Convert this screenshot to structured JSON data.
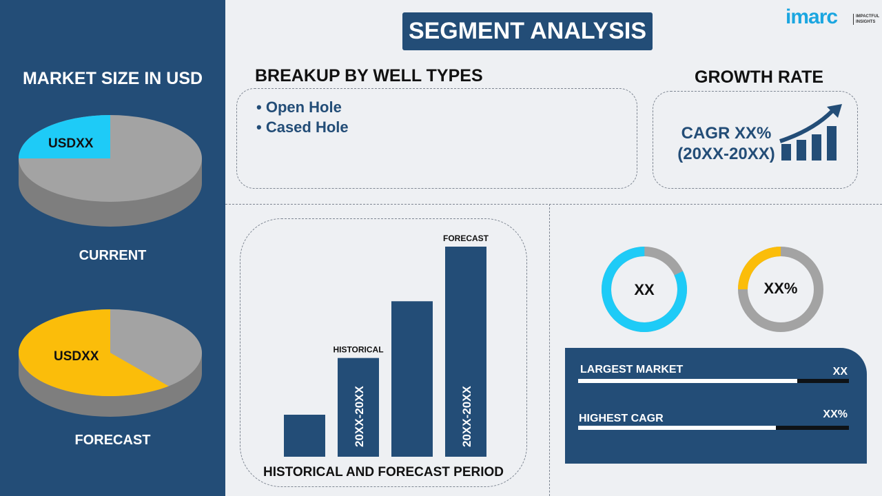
{
  "left": {
    "title": "MARKET SIZE IN USD",
    "current": {
      "label": "CURRENT",
      "value_label": "USDXX",
      "highlight_share": 0.25,
      "color": "#1ecbf7"
    },
    "forecast": {
      "label": "FORECAST",
      "value_label": "USDXX",
      "highlight_share": 0.61,
      "color": "#fbbd0a"
    }
  },
  "header": {
    "title": "SEGMENT ANALYSIS"
  },
  "logo": {
    "text": "imarc",
    "tagline1": "IMPACTFUL",
    "tagline2": "INSIGHTS"
  },
  "breakup": {
    "title": "BREAKUP BY WELL TYPES",
    "items": [
      "Open Hole",
      "Cased Hole"
    ]
  },
  "growth": {
    "title": "GROWTH RATE",
    "line1": "CAGR XX%",
    "line2": "(20XX-20XX)"
  },
  "chart_data": {
    "type": "bar",
    "title": "HISTORICAL AND FORECAST PERIOD",
    "categories": [
      "",
      "20XX-20XX",
      "",
      "20XX-20XX"
    ],
    "values": [
      0.2,
      0.47,
      0.74,
      1.0
    ],
    "annotations": [
      "",
      "HISTORICAL",
      "",
      "FORECAST"
    ],
    "color": "#234d77"
  },
  "donuts": [
    {
      "label": "XX",
      "share": 0.82,
      "color": "#1ecbf7"
    },
    {
      "label": "XX%",
      "share": 0.25,
      "color": "#fbbd0a"
    }
  ],
  "stats": [
    {
      "label": "LARGEST MARKET",
      "value": "XX",
      "fill": 0.81
    },
    {
      "label": "HIGHEST CAGR",
      "value": "XX%",
      "fill": 0.73
    }
  ],
  "colors": {
    "navy": "#234d77",
    "gray": "#a3a3a3",
    "background": "#eef0f3"
  }
}
